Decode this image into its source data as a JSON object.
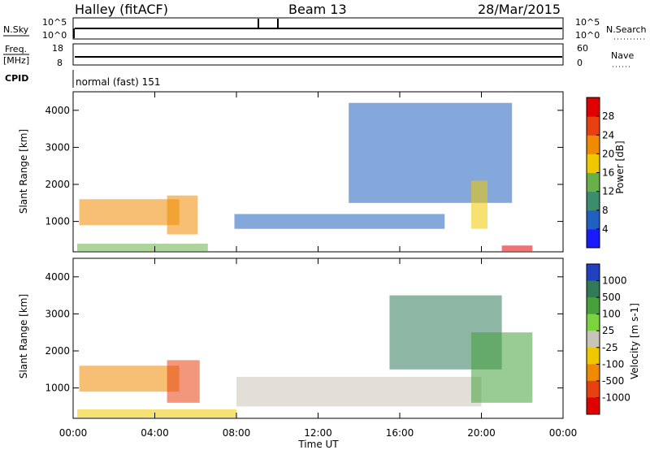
{
  "header": {
    "station": "Halley (fitACF)",
    "beam": "Beam 13",
    "date": "28/Mar/2015"
  },
  "panels": {
    "nsky": {
      "left_label": "N.Sky",
      "left_ticks": [
        "10^5",
        "10^0"
      ],
      "right_ticks": [
        "10^5",
        "10^0"
      ],
      "right_label": "N.Search"
    },
    "freq": {
      "left_label_1": "Freq.",
      "left_label_2": "[MHz]",
      "left_ticks": [
        "18",
        "8"
      ],
      "right_ticks": [
        "60",
        "0"
      ],
      "right_label": "Nave"
    },
    "cpid": {
      "label": "CPID",
      "text": "normal (fast) 151"
    }
  },
  "time_axis": {
    "ticks": [
      "00:00",
      "04:00",
      "08:00",
      "12:00",
      "16:00",
      "20:00",
      "00:00"
    ],
    "label": "Time UT"
  },
  "chart_data": [
    {
      "type": "heatmap",
      "title": "",
      "ylabel": "Slant Range [km]",
      "xlabel": "",
      "ylim": [
        180,
        4500
      ],
      "yticks": [
        1000,
        2000,
        3000,
        4000
      ],
      "xlim": [
        0,
        24
      ],
      "colorbar": {
        "label": "Power [dB]",
        "ticks": [
          "4",
          "8",
          "12",
          "16",
          "20",
          "24",
          "28"
        ],
        "colors": [
          "#1a1aff",
          "#2060c0",
          "#3c8c6e",
          "#68b048",
          "#f0c800",
          "#f08a00",
          "#e84010",
          "#e00000"
        ]
      },
      "regions": [
        {
          "t0": 0.3,
          "t1": 5.2,
          "r0": 900,
          "r1": 1600,
          "level": 5
        },
        {
          "t0": 4.6,
          "t1": 6.1,
          "r0": 650,
          "r1": 1700,
          "level": 5
        },
        {
          "t0": 0.2,
          "t1": 6.6,
          "r0": 200,
          "r1": 400,
          "level": 3
        },
        {
          "t0": 7.9,
          "t1": 18.2,
          "r0": 800,
          "r1": 1200,
          "level": 1
        },
        {
          "t0": 13.5,
          "t1": 21.5,
          "r0": 1500,
          "r1": 4200,
          "level": 1
        },
        {
          "t0": 19.5,
          "t1": 20.3,
          "r0": 800,
          "r1": 2100,
          "level": 4
        },
        {
          "t0": 21.0,
          "t1": 22.5,
          "r0": 200,
          "r1": 350,
          "level": 7
        }
      ]
    },
    {
      "type": "heatmap",
      "title": "",
      "ylabel": "Slant Range [km]",
      "xlabel": "Time UT",
      "ylim": [
        180,
        4500
      ],
      "yticks": [
        1000,
        2000,
        3000,
        4000
      ],
      "xlim": [
        0,
        24
      ],
      "colorbar": {
        "label": "Velocity [m s-1]",
        "ticks": [
          "1000",
          "500",
          "100",
          "25",
          "-25",
          "-100",
          "-500",
          "-1000"
        ],
        "colors": [
          "#2040c0",
          "#307a5a",
          "#46a03c",
          "#7cd43c",
          "#c8c4b8",
          "#f0c800",
          "#f08a00",
          "#e84010",
          "#e00000"
        ]
      },
      "regions": [
        {
          "t0": 0.3,
          "t1": 5.2,
          "r0": 900,
          "r1": 1600,
          "level": 6
        },
        {
          "t0": 4.6,
          "t1": 6.2,
          "r0": 600,
          "r1": 1750,
          "level": 7
        },
        {
          "t0": 0.2,
          "t1": 8.0,
          "r0": 200,
          "r1": 420,
          "level": 5
        },
        {
          "t0": 8.0,
          "t1": 20.0,
          "r0": 500,
          "r1": 1300,
          "level": 4
        },
        {
          "t0": 15.5,
          "t1": 21.0,
          "r0": 1500,
          "r1": 3500,
          "level": 1
        },
        {
          "t0": 19.5,
          "t1": 22.5,
          "r0": 600,
          "r1": 2500,
          "level": 2
        }
      ]
    }
  ]
}
